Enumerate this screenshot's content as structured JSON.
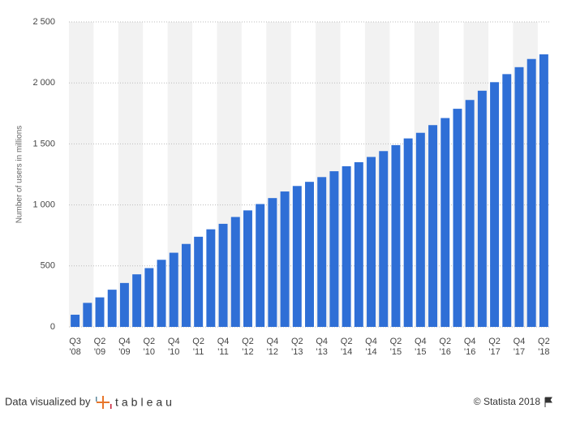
{
  "chart_data": {
    "type": "bar",
    "y_label": "Number of users in millions",
    "categories": [
      [
        "Q3",
        "'08"
      ],
      null,
      [
        "Q2",
        "'09"
      ],
      null,
      [
        "Q4",
        "'09"
      ],
      null,
      [
        "Q2",
        "'10"
      ],
      null,
      [
        "Q4",
        "'10"
      ],
      null,
      [
        "Q2",
        "'11"
      ],
      null,
      [
        "Q4",
        "'11"
      ],
      null,
      [
        "Q2",
        "'12"
      ],
      null,
      [
        "Q4",
        "'12"
      ],
      null,
      [
        "Q2",
        "'13"
      ],
      null,
      [
        "Q4",
        "'13"
      ],
      null,
      [
        "Q2",
        "'14"
      ],
      null,
      [
        "Q4",
        "'14"
      ],
      null,
      [
        "Q2",
        "'15"
      ],
      null,
      [
        "Q4",
        "'15"
      ],
      null,
      [
        "Q2",
        "'16"
      ],
      null,
      [
        "Q4",
        "'16"
      ],
      null,
      [
        "Q2",
        "'17"
      ],
      null,
      [
        "Q4",
        "'17"
      ],
      null,
      [
        "Q2",
        "'18"
      ]
    ],
    "values": [
      100,
      197,
      242,
      305,
      360,
      431,
      482,
      550,
      608,
      680,
      739,
      800,
      845,
      901,
      955,
      1007,
      1056,
      1110,
      1155,
      1189,
      1228,
      1276,
      1317,
      1350,
      1393,
      1441,
      1490,
      1545,
      1591,
      1654,
      1712,
      1788,
      1860,
      1936,
      2006,
      2072,
      2129,
      2196,
      2234
    ],
    "color": "#2f6fd6",
    "ylim": [
      0,
      2500
    ],
    "yticks": [
      0,
      500,
      {
        "value": 1000,
        "label": "1 000"
      },
      {
        "value": 1500,
        "label": "1 500"
      },
      {
        "value": 2000,
        "label": "2 000"
      },
      {
        "value": 2500,
        "label": "2 500"
      }
    ],
    "grid": true
  },
  "footer": {
    "credit": "Data visualized by",
    "logo": "tableau",
    "source": "© Statista 2018"
  }
}
